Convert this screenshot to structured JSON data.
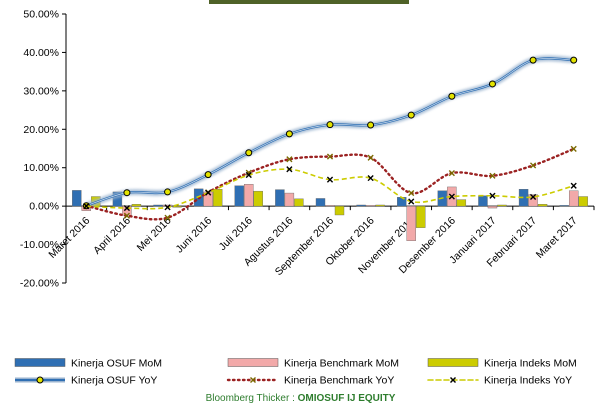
{
  "footer": {
    "prefix": "Bloomberg Thicker : ",
    "ticker": "OMIOSUF IJ EQUITY"
  },
  "chart_data": {
    "type": "bar+line",
    "title": "",
    "xlabel": "",
    "ylabel": "",
    "ylim": [
      -20,
      50
    ],
    "yticks": [
      -20,
      -10,
      0,
      10,
      20,
      30,
      40,
      50
    ],
    "ytick_labels": [
      "-20.00%",
      "-10.00%",
      "0.00%",
      "10.00%",
      "20.00%",
      "30.00%",
      "40.00%",
      "50.00%"
    ],
    "categories": [
      "Maret 2016",
      "April 2016",
      "Mei 2016",
      "Juni 2016",
      "Juli 2016",
      "Agustus 2016",
      "September 2016",
      "Oktober 2016",
      "November 2016",
      "Desember 2016",
      "Januari 2017",
      "Februari 2017",
      "Maret 2017"
    ],
    "bars": [
      {
        "name": "Kinerja OSUF MoM",
        "color": "#2f6fb3",
        "values": [
          4.1,
          3.7,
          0.3,
          4.5,
          5.3,
          4.3,
          2.0,
          0.3,
          2.3,
          4.0,
          2.7,
          4.4,
          0.2
        ]
      },
      {
        "name": "Kinerja Benchmark MoM",
        "color": "#f2a9a9",
        "values": [
          -1.2,
          -2.4,
          0.3,
          3.7,
          5.7,
          3.4,
          0.2,
          0.2,
          -9.0,
          5.0,
          -0.5,
          3.0,
          4.0
        ]
      },
      {
        "name": "Kinerja Indeks MoM",
        "color": "#cccc00",
        "values": [
          2.5,
          0.5,
          -0.3,
          4.4,
          3.9,
          1.9,
          -2.3,
          0.3,
          -5.6,
          1.7,
          0.3,
          0.5,
          2.5
        ]
      }
    ],
    "lines": [
      {
        "name": "Kinerja OSUF YoY",
        "color": "#2f6fb3",
        "style": "solid",
        "marker": "circle",
        "values": [
          0.1,
          3.5,
          3.7,
          8.2,
          13.9,
          18.8,
          21.2,
          21.1,
          23.7,
          28.6,
          31.8,
          38.0,
          38.0
        ]
      },
      {
        "name": "Kinerja Benchmark YoY",
        "color": "#9b2222",
        "style": "dotted",
        "marker": "x",
        "values": [
          0.1,
          -2.5,
          -3.0,
          3.6,
          8.7,
          12.2,
          12.9,
          12.6,
          3.4,
          8.6,
          7.9,
          10.6,
          14.9
        ]
      },
      {
        "name": "Kinerja Indeks YoY",
        "color": "#cccc00",
        "style": "dashed",
        "marker": "x",
        "values": [
          0.0,
          -0.5,
          -0.3,
          3.5,
          8.1,
          9.6,
          6.9,
          7.3,
          1.2,
          2.5,
          2.7,
          2.4,
          5.3
        ]
      }
    ],
    "grid": false,
    "legend_position": "bottom"
  }
}
